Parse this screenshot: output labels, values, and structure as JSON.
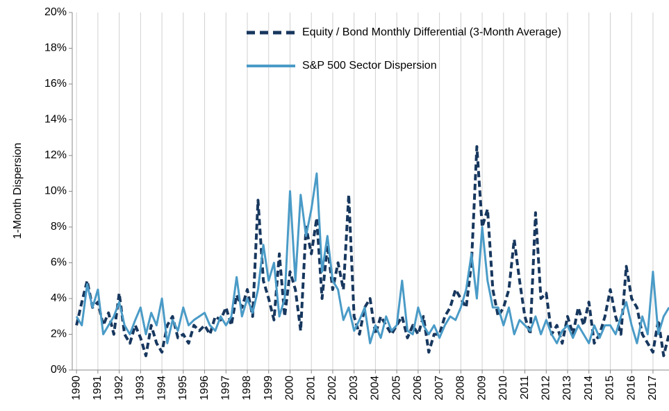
{
  "chart_data": {
    "type": "line",
    "y_label": "1-Month Dispersion",
    "legend": "upper right",
    "grid": "x",
    "xlim": [
      1989.8,
      2017.75
    ],
    "xticks": [
      1990,
      1991,
      1992,
      1993,
      1994,
      1995,
      1996,
      1997,
      1998,
      1999,
      2000,
      2001,
      2002,
      2003,
      2004,
      2005,
      2006,
      2007,
      2008,
      2009,
      2010,
      2011,
      2012,
      2013,
      2014,
      2015,
      2016,
      2017
    ],
    "ylim": [
      0,
      20
    ],
    "yticks": [
      {
        "value": 0,
        "label": "0%"
      },
      {
        "value": 2,
        "label": "2%"
      },
      {
        "value": 4,
        "label": "4%"
      },
      {
        "value": 6,
        "label": "6%"
      },
      {
        "value": 8,
        "label": "8%"
      },
      {
        "value": 10,
        "label": "10%"
      },
      {
        "value": 12,
        "label": "12%"
      },
      {
        "value": 14,
        "label": "14%"
      },
      {
        "value": 16,
        "label": "16%"
      },
      {
        "value": 18,
        "label": "18%"
      },
      {
        "value": 20,
        "label": "20%"
      }
    ],
    "x": [
      1990,
      1990.25,
      1990.5,
      1990.75,
      1991,
      1991.25,
      1991.5,
      1991.75,
      1992,
      1992.25,
      1992.5,
      1992.75,
      1993,
      1993.25,
      1993.5,
      1993.75,
      1994,
      1994.25,
      1994.5,
      1994.75,
      1995,
      1995.25,
      1995.5,
      1995.75,
      1996,
      1996.25,
      1996.5,
      1996.75,
      1997,
      1997.25,
      1997.5,
      1997.75,
      1998,
      1998.25,
      1998.5,
      1998.75,
      1999,
      1999.25,
      1999.5,
      1999.75,
      2000,
      2000.25,
      2000.5,
      2000.75,
      2001,
      2001.25,
      2001.5,
      2001.75,
      2002,
      2002.25,
      2002.5,
      2002.75,
      2003,
      2003.25,
      2003.5,
      2003.75,
      2004,
      2004.25,
      2004.5,
      2004.75,
      2005,
      2005.25,
      2005.5,
      2005.75,
      2006,
      2006.25,
      2006.5,
      2006.75,
      2007,
      2007.25,
      2007.5,
      2007.75,
      2008,
      2008.25,
      2008.5,
      2008.75,
      2009,
      2009.25,
      2009.5,
      2009.75,
      2010,
      2010.25,
      2010.5,
      2010.75,
      2011,
      2011.25,
      2011.5,
      2011.75,
      2012,
      2012.25,
      2012.5,
      2012.75,
      2013,
      2013.25,
      2013.5,
      2013.75,
      2014,
      2014.25,
      2014.5,
      2014.75,
      2015,
      2015.25,
      2015.5,
      2015.75,
      2016,
      2016.25,
      2016.5,
      2016.75,
      2017,
      2017.25,
      2017.5,
      2017.75
    ],
    "series": [
      {
        "name": "Equity / Bond Monthly Differential (3-Month Average)",
        "color": "#17375e",
        "dashed": true,
        "values": [
          2.5,
          3.8,
          5.0,
          3.5,
          3.8,
          2.5,
          3.2,
          2.0,
          4.3,
          2.0,
          1.5,
          2.5,
          1.8,
          0.8,
          2.5,
          1.5,
          1.0,
          2.5,
          3.0,
          1.8,
          2.0,
          1.5,
          2.5,
          2.2,
          2.5,
          2.0,
          3.0,
          2.8,
          3.5,
          2.5,
          4.2,
          3.5,
          4.5,
          3.0,
          9.5,
          5.0,
          4.0,
          2.8,
          6.5,
          3.0,
          5.5,
          4.5,
          2.2,
          8.0,
          6.5,
          8.5,
          4.0,
          7.0,
          4.5,
          6.0,
          4.5,
          9.8,
          3.0,
          2.0,
          3.5,
          4.0,
          2.0,
          3.0,
          2.5,
          2.0,
          2.5,
          3.0,
          1.8,
          2.5,
          2.0,
          3.0,
          1.0,
          2.0,
          2.0,
          3.0,
          3.5,
          4.5,
          4.0,
          3.5,
          6.0,
          12.5,
          8.0,
          9.0,
          4.5,
          3.0,
          3.5,
          4.5,
          7.3,
          5.0,
          3.0,
          2.0,
          8.8,
          4.0,
          4.3,
          2.0,
          2.5,
          1.5,
          3.0,
          2.0,
          3.5,
          2.5,
          3.8,
          1.5,
          2.0,
          3.0,
          4.5,
          3.0,
          2.0,
          5.8,
          4.0,
          3.5,
          2.0,
          1.5,
          1.0,
          2.8,
          0.8,
          2.0
        ]
      },
      {
        "name": "S&P 500 Sector Dispersion",
        "color": "#4a9bc7",
        "dashed": false,
        "values": [
          3.0,
          2.5,
          4.8,
          3.5,
          4.5,
          2.0,
          2.5,
          3.0,
          3.8,
          2.5,
          2.0,
          2.8,
          3.5,
          2.0,
          3.2,
          2.5,
          4.0,
          1.5,
          2.8,
          2.2,
          3.5,
          2.5,
          2.8,
          3.0,
          3.2,
          2.5,
          2.2,
          3.0,
          2.5,
          3.0,
          5.2,
          3.0,
          4.0,
          3.2,
          4.5,
          7.0,
          5.0,
          6.0,
          3.0,
          4.0,
          10.0,
          5.0,
          9.8,
          7.5,
          9.0,
          11.0,
          5.5,
          7.5,
          5.0,
          4.5,
          2.8,
          3.5,
          2.2,
          2.8,
          3.5,
          1.5,
          2.5,
          1.8,
          3.0,
          2.2,
          2.5,
          5.0,
          2.2,
          2.0,
          3.5,
          2.5,
          2.0,
          2.5,
          1.8,
          2.5,
          3.0,
          2.8,
          3.5,
          4.5,
          6.5,
          4.0,
          8.0,
          5.0,
          3.5,
          3.5,
          2.5,
          3.5,
          2.0,
          2.8,
          2.5,
          2.2,
          3.0,
          2.0,
          2.8,
          2.0,
          1.5,
          2.2,
          2.5,
          1.8,
          2.5,
          2.0,
          1.5,
          2.5,
          1.8,
          2.5,
          2.5,
          2.0,
          3.0,
          3.8,
          2.5,
          1.5,
          3.0,
          2.0,
          5.5,
          2.0,
          3.0,
          3.5
        ]
      }
    ]
  }
}
